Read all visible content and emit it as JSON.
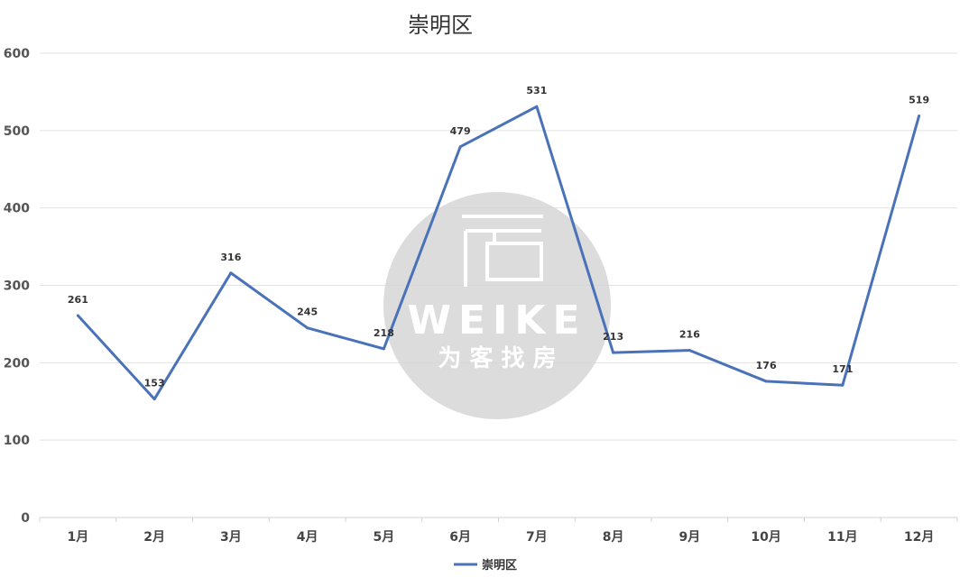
{
  "chart_data": {
    "type": "line",
    "title": "崇明区",
    "categories": [
      "1月",
      "2月",
      "3月",
      "4月",
      "5月",
      "6月",
      "7月",
      "8月",
      "9月",
      "10月",
      "11月",
      "12月"
    ],
    "series": [
      {
        "name": "崇明区",
        "values": [
          261,
          153,
          316,
          245,
          218,
          479,
          531,
          213,
          216,
          176,
          171,
          519
        ],
        "color": "#4A72B8"
      }
    ],
    "ylim": [
      0,
      600
    ],
    "yticks": [
      0,
      100,
      200,
      300,
      400,
      500,
      600
    ],
    "grid": true,
    "legend": "bottom"
  },
  "watermark": {
    "brand": "WEIKE",
    "tagline": "为 客 找 房"
  }
}
